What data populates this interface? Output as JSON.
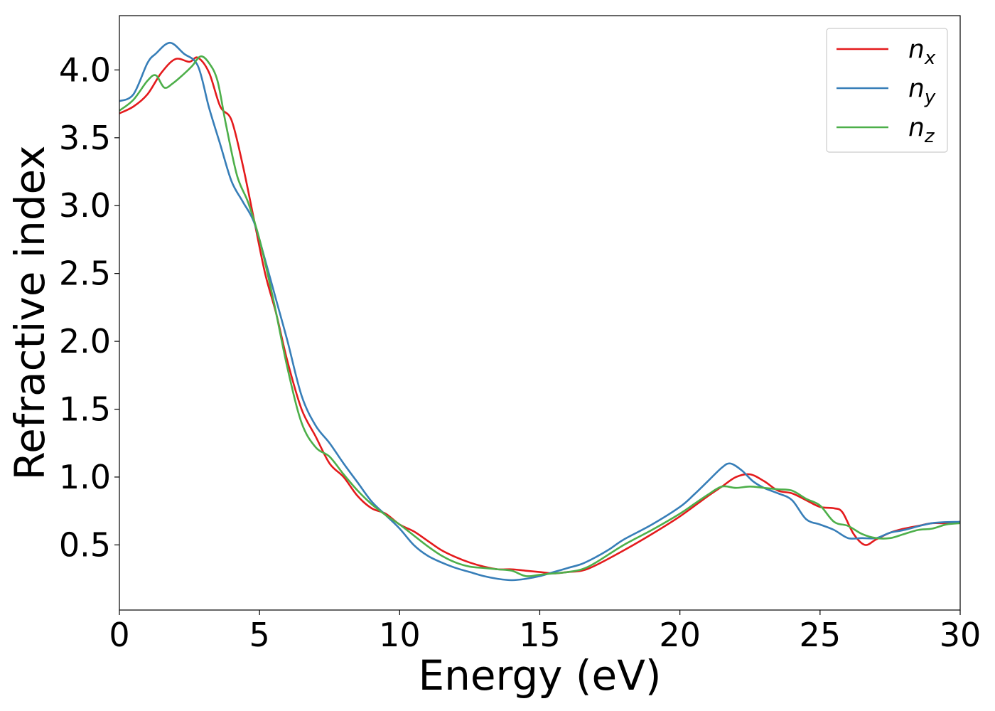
{
  "chart_data": {
    "type": "line",
    "xlabel": "Energy (eV)",
    "ylabel": "Refractive index",
    "xlim": [
      0,
      30
    ],
    "ylim": [
      0.02,
      4.4
    ],
    "xticks": [
      0,
      5,
      10,
      15,
      20,
      25,
      30
    ],
    "xtick_labels": [
      "0",
      "5",
      "10",
      "15",
      "20",
      "25",
      "30"
    ],
    "yticks": [
      0.5,
      1.0,
      1.5,
      2.0,
      2.5,
      3.0,
      3.5,
      4.0
    ],
    "ytick_labels": [
      "0.5",
      "1.0",
      "1.5",
      "2.0",
      "2.5",
      "3.0",
      "3.5",
      "4.0"
    ],
    "grid": false,
    "legend_position": "top-right",
    "series": [
      {
        "name": "n_x",
        "label_base": "n",
        "label_sub": "x",
        "color": "#e41a1c",
        "x": [
          0,
          0.5,
          1.0,
          1.5,
          2.0,
          2.5,
          2.8,
          3.2,
          3.6,
          4.0,
          4.4,
          4.8,
          5.2,
          5.6,
          6.0,
          6.5,
          7.0,
          7.5,
          8.0,
          8.5,
          9.0,
          9.5,
          10.0,
          10.5,
          11.0,
          11.5,
          12.0,
          12.5,
          13.0,
          13.5,
          14.0,
          14.5,
          15.0,
          15.5,
          16.0,
          16.5,
          17.0,
          18.0,
          19.0,
          20.0,
          21.0,
          21.5,
          22.0,
          22.5,
          23.0,
          23.5,
          24.0,
          24.5,
          25.0,
          25.5,
          25.8,
          26.2,
          26.6,
          27.0,
          27.5,
          28.0,
          28.5,
          29.0,
          29.5,
          30.0
        ],
        "y": [
          3.68,
          3.73,
          3.82,
          3.98,
          4.08,
          4.06,
          4.09,
          3.98,
          3.73,
          3.63,
          3.3,
          2.9,
          2.5,
          2.2,
          1.85,
          1.5,
          1.3,
          1.1,
          1.0,
          0.86,
          0.77,
          0.73,
          0.65,
          0.6,
          0.53,
          0.46,
          0.41,
          0.37,
          0.34,
          0.32,
          0.32,
          0.31,
          0.3,
          0.29,
          0.3,
          0.31,
          0.35,
          0.46,
          0.58,
          0.71,
          0.86,
          0.93,
          1.0,
          1.02,
          0.97,
          0.9,
          0.88,
          0.83,
          0.78,
          0.77,
          0.74,
          0.58,
          0.5,
          0.54,
          0.59,
          0.62,
          0.64,
          0.66,
          0.66,
          0.67
        ]
      },
      {
        "name": "n_y",
        "label_base": "n",
        "label_sub": "y",
        "color": "#377eb8",
        "x": [
          0,
          0.5,
          1.0,
          1.3,
          1.8,
          2.3,
          2.8,
          3.2,
          3.6,
          4.0,
          4.4,
          4.8,
          5.2,
          5.6,
          6.0,
          6.5,
          7.0,
          7.5,
          8.0,
          8.5,
          9.0,
          9.5,
          10.0,
          10.5,
          11.0,
          11.5,
          12.0,
          12.5,
          13.0,
          13.5,
          14.0,
          14.5,
          15.0,
          15.5,
          16.0,
          16.5,
          17.0,
          17.5,
          18.0,
          19.0,
          20.0,
          20.5,
          21.0,
          21.5,
          21.8,
          22.2,
          22.6,
          23.0,
          23.5,
          24.0,
          24.5,
          25.0,
          25.5,
          26.0,
          26.5,
          27.0,
          27.5,
          28.0,
          29.0,
          30.0
        ],
        "y": [
          3.77,
          3.82,
          4.05,
          4.12,
          4.2,
          4.12,
          4.03,
          3.72,
          3.45,
          3.18,
          3.03,
          2.88,
          2.6,
          2.3,
          2.0,
          1.6,
          1.38,
          1.25,
          1.1,
          0.96,
          0.82,
          0.72,
          0.62,
          0.5,
          0.42,
          0.37,
          0.33,
          0.3,
          0.27,
          0.25,
          0.24,
          0.25,
          0.27,
          0.3,
          0.33,
          0.36,
          0.41,
          0.47,
          0.54,
          0.65,
          0.78,
          0.87,
          0.97,
          1.07,
          1.1,
          1.05,
          0.97,
          0.92,
          0.88,
          0.83,
          0.69,
          0.65,
          0.61,
          0.55,
          0.55,
          0.55,
          0.59,
          0.61,
          0.66,
          0.67
        ]
      },
      {
        "name": "n_z",
        "label_base": "n",
        "label_sub": "z",
        "color": "#4daf4a",
        "x": [
          0,
          0.5,
          1.0,
          1.3,
          1.6,
          1.9,
          2.3,
          2.6,
          2.9,
          3.2,
          3.5,
          3.8,
          4.2,
          4.6,
          5.0,
          5.5,
          6.0,
          6.5,
          7.0,
          7.5,
          8.0,
          8.5,
          9.0,
          9.5,
          10.0,
          10.5,
          11.0,
          11.5,
          12.0,
          12.5,
          13.0,
          13.5,
          14.0,
          14.5,
          15.0,
          15.5,
          16.0,
          16.5,
          17.0,
          18.0,
          19.0,
          20.0,
          20.5,
          21.0,
          21.5,
          22.0,
          22.5,
          23.0,
          23.5,
          24.0,
          24.5,
          25.0,
          25.5,
          26.0,
          26.5,
          27.0,
          27.5,
          28.0,
          28.5,
          29.0,
          29.5,
          30.0
        ],
        "y": [
          3.7,
          3.78,
          3.92,
          3.96,
          3.87,
          3.9,
          3.97,
          4.03,
          4.1,
          4.05,
          3.92,
          3.6,
          3.22,
          3.02,
          2.75,
          2.3,
          1.8,
          1.4,
          1.22,
          1.15,
          1.02,
          0.9,
          0.8,
          0.72,
          0.65,
          0.57,
          0.49,
          0.42,
          0.37,
          0.34,
          0.33,
          0.32,
          0.31,
          0.27,
          0.28,
          0.29,
          0.3,
          0.32,
          0.37,
          0.5,
          0.61,
          0.73,
          0.8,
          0.87,
          0.93,
          0.92,
          0.93,
          0.92,
          0.91,
          0.9,
          0.84,
          0.79,
          0.67,
          0.64,
          0.58,
          0.55,
          0.55,
          0.58,
          0.61,
          0.62,
          0.65,
          0.66
        ]
      }
    ]
  }
}
